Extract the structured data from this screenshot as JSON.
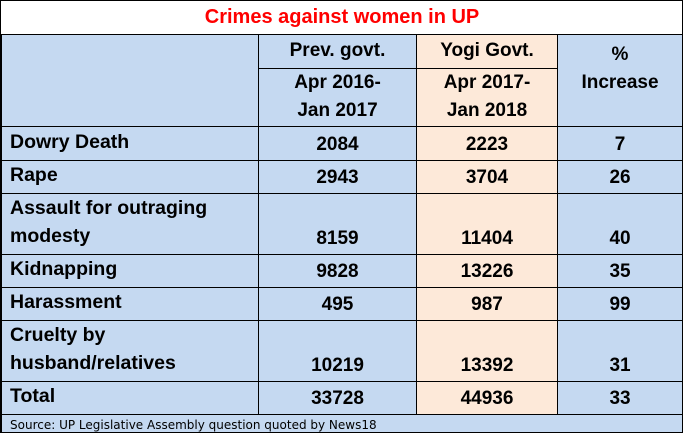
{
  "title": "Crimes against women in UP",
  "headers": {
    "prev_line1": "Prev. govt.",
    "prev_line2a": "Apr 2016-",
    "prev_line2b": "Jan 2017",
    "yogi_line1": "Yogi Govt.",
    "yogi_line2a": "Apr 2017-",
    "yogi_line2b": "Jan 2018",
    "pct_a": "%",
    "pct_b": "Increase"
  },
  "rows": [
    {
      "label_a": "Dowry Death",
      "label_b": "",
      "prev": "2084",
      "yogi": "2223",
      "pct": "7"
    },
    {
      "label_a": "Rape",
      "label_b": "",
      "prev": "2943",
      "yogi": "3704",
      "pct": "26"
    },
    {
      "label_a": "Assault for outraging",
      "label_b": "modesty",
      "prev": "8159",
      "yogi": "11404",
      "pct": "40"
    },
    {
      "label_a": "Kidnapping",
      "label_b": "",
      "prev": "9828",
      "yogi": "13226",
      "pct": "35"
    },
    {
      "label_a": "Harassment",
      "label_b": "",
      "prev": "495",
      "yogi": "987",
      "pct": "99"
    },
    {
      "label_a": "Cruelty by",
      "label_b": "husband/relatives",
      "prev": "10219",
      "yogi": "13392",
      "pct": "31"
    },
    {
      "label_a": "Total",
      "label_b": "",
      "prev": "33728",
      "yogi": "44936",
      "pct": "33"
    }
  ],
  "source": "Source: UP Legislative Assembly question quoted by News18",
  "colors": {
    "title": "#FF0000",
    "table_blue": "#C5D9F1",
    "yogi_peach": "#FDE9D9"
  },
  "chart_data": {
    "type": "table",
    "title": "Crimes against women in UP",
    "columns": [
      "",
      "Prev. govt. Apr 2016-Jan 2017",
      "Yogi Govt. Apr 2017-Jan 2018",
      "% Increase"
    ],
    "categories": [
      "Dowry Death",
      "Rape",
      "Assault for outraging modesty",
      "Kidnapping",
      "Harassment",
      "Cruelty by husband/relatives",
      "Total"
    ],
    "series": [
      {
        "name": "Prev. govt. Apr 2016-Jan 2017",
        "values": [
          2084,
          2943,
          8159,
          9828,
          495,
          10219,
          33728
        ]
      },
      {
        "name": "Yogi Govt. Apr 2017-Jan 2018",
        "values": [
          2223,
          3704,
          11404,
          13226,
          987,
          13392,
          44936
        ]
      },
      {
        "name": "% Increase",
        "values": [
          7,
          26,
          40,
          35,
          99,
          31,
          33
        ]
      }
    ]
  }
}
